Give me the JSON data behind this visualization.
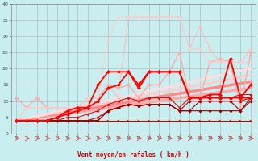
{
  "title": "",
  "xlabel": "Vent moyen/en rafales ( km/h )",
  "ylabel": "",
  "background_color": "#c8eef0",
  "grid_color": "#b0b0b0",
  "xlim": [
    -0.5,
    23.5
  ],
  "ylim": [
    0,
    40
  ],
  "yticks": [
    0,
    5,
    10,
    15,
    20,
    25,
    30,
    35,
    40
  ],
  "xticks": [
    0,
    1,
    2,
    3,
    4,
    5,
    6,
    7,
    8,
    9,
    10,
    11,
    12,
    13,
    14,
    15,
    16,
    17,
    18,
    19,
    20,
    21,
    22,
    23
  ],
  "series": [
    {
      "x": [
        0,
        1,
        2,
        3,
        4,
        5,
        6,
        7,
        8,
        9,
        10,
        11,
        12,
        13,
        14,
        15,
        16,
        17,
        18,
        19,
        20,
        21,
        22,
        23
      ],
      "y": [
        4,
        4,
        4,
        4,
        4,
        4,
        4,
        4,
        4,
        4,
        4,
        4,
        4,
        4,
        4,
        4,
        4,
        4,
        4,
        4,
        4,
        4,
        4,
        4
      ],
      "color": "#cc0000",
      "linewidth": 0.8,
      "marker": ">",
      "markersize": 2.5,
      "linestyle": "-",
      "zorder": 2
    },
    {
      "x": [
        0,
        1,
        2,
        3,
        4,
        5,
        6,
        7,
        8,
        9,
        10,
        11,
        12,
        13,
        14,
        15,
        16,
        17,
        18,
        19,
        20,
        21,
        22,
        23
      ],
      "y": [
        4,
        4,
        4,
        4,
        4,
        4,
        4,
        4,
        5,
        7,
        8,
        9,
        8.5,
        9,
        9,
        9,
        7,
        10,
        10,
        10,
        10,
        10,
        10,
        11
      ],
      "color": "#cc0000",
      "linewidth": 0.8,
      "marker": "D",
      "markersize": 2,
      "linestyle": "-",
      "zorder": 3
    },
    {
      "x": [
        0,
        1,
        2,
        3,
        4,
        5,
        6,
        7,
        8,
        9,
        10,
        11,
        12,
        13,
        14,
        15,
        16,
        17,
        18,
        19,
        20,
        21,
        22,
        23
      ],
      "y": [
        4,
        4,
        4,
        4,
        4,
        5,
        5,
        6,
        7,
        9,
        10,
        11,
        10,
        11,
        11,
        11,
        8,
        11,
        11,
        11,
        11,
        11,
        12,
        12
      ],
      "color": "#dd1111",
      "linewidth": 0.8,
      "marker": "D",
      "markersize": 2,
      "linestyle": "-",
      "zorder": 3
    },
    {
      "x": [
        0,
        1,
        2,
        3,
        4,
        5,
        6,
        7,
        8,
        9,
        10,
        11,
        12,
        13,
        14,
        15,
        16,
        17,
        18,
        19,
        20,
        21,
        22,
        23
      ],
      "y": [
        4,
        4,
        4,
        4,
        5,
        6,
        7,
        8,
        10,
        14,
        15,
        19,
        14,
        19,
        19,
        19,
        19,
        11,
        11,
        11,
        11,
        11,
        11,
        11
      ],
      "color": "#ff0000",
      "linewidth": 1.3,
      "marker": "D",
      "markersize": 2.5,
      "linestyle": "-",
      "zorder": 4
    },
    {
      "x": [
        0,
        1,
        2,
        3,
        4,
        5,
        6,
        7,
        8,
        9,
        10,
        11,
        12,
        13,
        14,
        15,
        16,
        17,
        18,
        19,
        20,
        21,
        22,
        23
      ],
      "y": [
        4,
        4,
        4,
        4,
        5,
        7,
        8,
        8,
        15,
        19,
        19,
        19,
        15,
        19,
        19,
        19,
        19,
        11,
        11,
        12,
        12,
        23,
        11,
        15
      ],
      "color": "#ff0000",
      "linewidth": 1.3,
      "marker": "D",
      "markersize": 2.5,
      "linestyle": "-",
      "zorder": 4
    },
    {
      "x": [
        0,
        1,
        2,
        3,
        4,
        5,
        6,
        7,
        8,
        9,
        10,
        11,
        12,
        13,
        14,
        15,
        16,
        17,
        18,
        19,
        20,
        21,
        22,
        23
      ],
      "y": [
        4,
        4,
        4,
        4,
        4,
        4,
        4,
        4,
        4,
        7,
        8,
        9,
        8.5,
        9,
        9,
        9,
        7,
        7,
        10,
        10,
        10,
        10,
        7,
        11
      ],
      "color": "#aa0000",
      "linewidth": 0.8,
      "marker": "D",
      "markersize": 2,
      "linestyle": "-",
      "zorder": 3
    },
    {
      "x": [
        0,
        1,
        2,
        3,
        4,
        5,
        6,
        7,
        8,
        9,
        10,
        11,
        12,
        13,
        14,
        15,
        16,
        17,
        18,
        19,
        20,
        21,
        22,
        23
      ],
      "y": [
        4,
        4,
        4,
        4,
        4,
        4,
        4,
        4,
        4,
        7,
        8,
        9,
        8.5,
        9,
        9,
        9,
        7,
        7,
        7,
        7,
        7,
        7,
        7,
        10
      ],
      "color": "#990000",
      "linewidth": 0.8,
      "marker": "D",
      "markersize": 2,
      "linestyle": "-",
      "zorder": 3
    },
    {
      "x": [
        0,
        1,
        2,
        3,
        4,
        5,
        6,
        7,
        8,
        9,
        10,
        11,
        12,
        13,
        14,
        15,
        16,
        17,
        18,
        19,
        20,
        21,
        22,
        23
      ],
      "y": [
        11,
        8,
        11,
        8,
        8,
        8,
        8,
        11,
        11,
        15,
        14,
        15,
        11,
        15,
        15,
        19,
        25,
        11,
        11,
        22,
        23,
        22,
        8,
        25
      ],
      "color": "#ffaaaa",
      "linewidth": 1.0,
      "marker": "D",
      "markersize": 2.5,
      "linestyle": "-",
      "zorder": 2
    },
    {
      "x": [
        0,
        1,
        2,
        3,
        4,
        5,
        6,
        7,
        8,
        9,
        10,
        11,
        12,
        13,
        14,
        15,
        16,
        17,
        18,
        19,
        20,
        21,
        22,
        23
      ],
      "y": [
        4,
        8,
        8,
        8,
        8,
        8,
        8,
        11,
        11,
        15,
        11,
        36,
        36,
        36,
        36,
        36,
        36,
        26,
        33,
        26,
        22,
        22,
        22,
        26
      ],
      "color": "#ffbbbb",
      "linewidth": 0.8,
      "marker": "D",
      "markersize": 2,
      "linestyle": "-",
      "zorder": 2
    },
    {
      "x": [
        0,
        1,
        2,
        3,
        4,
        5,
        6,
        7,
        8,
        9,
        10,
        11,
        12,
        13,
        14,
        15,
        16,
        17,
        18,
        19,
        20,
        21,
        22,
        23
      ],
      "y": [
        4,
        8,
        8,
        8,
        8,
        8,
        8,
        11,
        11,
        29,
        36,
        36,
        36,
        36,
        36,
        36,
        36,
        26,
        26,
        22,
        22,
        22,
        22,
        22
      ],
      "color": "#ffcccc",
      "linewidth": 0.8,
      "marker": "D",
      "markersize": 2,
      "linestyle": "-",
      "zorder": 2
    },
    {
      "x": [
        0,
        23
      ],
      "y": [
        4,
        14
      ],
      "color": "#ffaaaa",
      "linewidth": 2.5,
      "marker": null,
      "markersize": 0,
      "linestyle": "-",
      "zorder": 1
    },
    {
      "x": [
        0,
        23
      ],
      "y": [
        4,
        16
      ],
      "color": "#ff8888",
      "linewidth": 2.5,
      "marker": null,
      "markersize": 0,
      "linestyle": "-",
      "zorder": 1
    },
    {
      "x": [
        0,
        23
      ],
      "y": [
        4,
        18
      ],
      "color": "#ffcccc",
      "linewidth": 2.0,
      "marker": null,
      "markersize": 0,
      "linestyle": "-",
      "zorder": 1
    },
    {
      "x": [
        0,
        23
      ],
      "y": [
        4,
        20
      ],
      "color": "#ffdddd",
      "linewidth": 2.0,
      "marker": null,
      "markersize": 0,
      "linestyle": "-",
      "zorder": 1
    }
  ],
  "wind_arrows": {
    "y_data": -2,
    "color": "#ff3333",
    "fontsize": 5
  }
}
